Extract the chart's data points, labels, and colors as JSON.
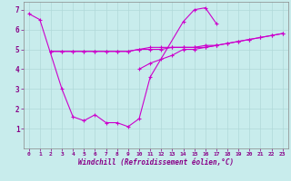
{
  "xlabel": "Windchill (Refroidissement éolien,°C)",
  "xlim": [
    -0.5,
    23.5
  ],
  "ylim": [
    0,
    7.4
  ],
  "background_color": "#c8ecec",
  "grid_color": "#b0d8d8",
  "line_color": "#cc00cc",
  "line1_x": [
    0,
    1,
    3,
    4,
    5,
    6,
    7,
    8,
    9,
    10,
    11,
    14,
    15,
    16,
    17
  ],
  "line1_y": [
    6.8,
    6.5,
    3.0,
    1.6,
    1.4,
    1.7,
    1.3,
    1.3,
    1.1,
    1.5,
    3.6,
    6.4,
    7.0,
    7.1,
    6.3
  ],
  "line2_x": [
    2,
    3,
    4,
    5,
    6,
    7,
    8,
    9,
    10,
    11,
    12,
    13,
    14,
    15,
    16,
    17
  ],
  "line2_y": [
    4.9,
    4.9,
    4.9,
    4.9,
    4.9,
    4.9,
    4.9,
    4.9,
    5.0,
    5.1,
    5.1,
    5.1,
    5.1,
    5.1,
    5.2,
    5.2
  ],
  "line3_x": [
    10,
    11,
    12,
    13,
    14,
    15,
    16,
    17,
    18,
    19,
    20,
    21,
    22,
    23
  ],
  "line3_y": [
    4.0,
    4.3,
    4.5,
    4.7,
    5.0,
    5.0,
    5.1,
    5.2,
    5.3,
    5.4,
    5.5,
    5.6,
    5.7,
    5.8
  ],
  "line4_x": [
    2,
    3,
    4,
    5,
    6,
    7,
    8,
    9,
    10,
    11,
    12,
    13,
    14,
    15,
    16,
    17,
    18,
    19,
    20,
    21,
    22,
    23
  ],
  "line4_y": [
    4.9,
    4.9,
    4.9,
    4.9,
    4.9,
    4.9,
    4.9,
    4.9,
    5.0,
    5.0,
    5.0,
    5.1,
    5.1,
    5.1,
    5.1,
    5.2,
    5.3,
    5.4,
    5.5,
    5.6,
    5.7,
    5.8
  ],
  "xticks": [
    0,
    1,
    2,
    3,
    4,
    5,
    6,
    7,
    8,
    9,
    10,
    11,
    12,
    13,
    14,
    15,
    16,
    17,
    18,
    19,
    20,
    21,
    22,
    23
  ],
  "yticks": [
    1,
    2,
    3,
    4,
    5,
    6,
    7
  ],
  "tick_color": "#880088",
  "xlabel_color": "#880088"
}
